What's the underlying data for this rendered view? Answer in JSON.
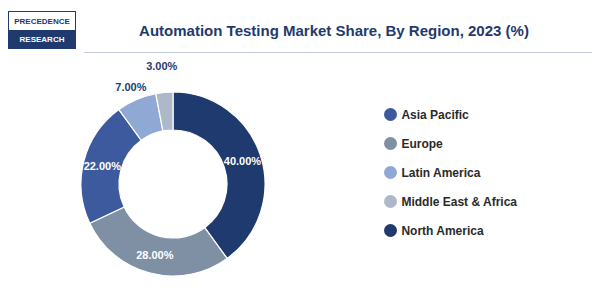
{
  "chart_data": {
    "type": "pie",
    "title": "Automation Testing Market Share, By Region, 2023 (%)",
    "categories": [
      "North America",
      "Europe",
      "Asia Pacific",
      "Latin America",
      "Middle East & Africa"
    ],
    "values": [
      40.0,
      28.0,
      22.0,
      7.0,
      3.0
    ],
    "value_labels": [
      "40.00%",
      "28.00%",
      "22.00%",
      "7.00%",
      "3.00%"
    ],
    "colors": [
      "#1f3a6e",
      "#7f8fa4",
      "#3d5a9e",
      "#8fa8d4",
      "#adb8c8"
    ],
    "data_labels": true,
    "legend": "right",
    "annotations": [
      "PRECEDENCE",
      "RESEARCH"
    ]
  }
}
